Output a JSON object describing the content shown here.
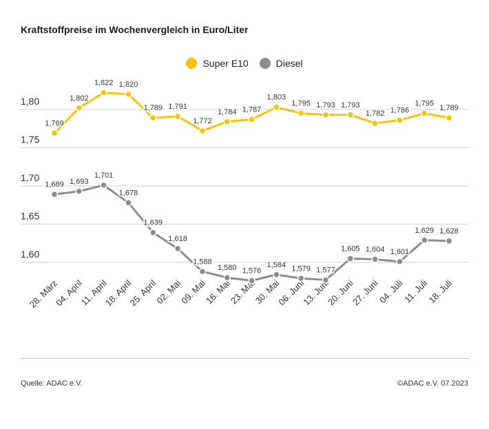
{
  "title": "Kraftstoffpreise im Wochenvergleich in Euro/Liter",
  "source": "Quelle: ADAC e.V.",
  "copyright": "©ADAC e.V. 07.2023",
  "colors": {
    "super": "#f2c500",
    "diesel": "#8c8c8c",
    "grid": "#cfcfcf"
  },
  "chart_data": {
    "type": "line",
    "title": "Kraftstoffpreise im Wochenvergleich in Euro/Liter",
    "xlabel": "",
    "ylabel": "",
    "ylim": [
      1.55,
      1.85
    ],
    "yticks": [
      "1,60",
      "1,65",
      "1,70",
      "1,75",
      "1,80"
    ],
    "ytick_values": [
      1.6,
      1.65,
      1.7,
      1.75,
      1.8
    ],
    "grid": true,
    "legend_position": "top-center",
    "categories": [
      "28. März",
      "04. April",
      "11. April",
      "18. April",
      "25. April",
      "02. Mai",
      "09. Mai",
      "16. Mai",
      "23. Mai",
      "30. Mai",
      "06. Juni",
      "13. Juni",
      "20. Juni",
      "27. Juni",
      "04. Juli",
      "11. Juli",
      "18. Juli"
    ],
    "series": [
      {
        "name": "Super E10",
        "color": "#f2c500",
        "values": [
          1.769,
          1.802,
          1.822,
          1.82,
          1.789,
          1.791,
          1.772,
          1.784,
          1.787,
          1.803,
          1.795,
          1.793,
          1.793,
          1.782,
          1.786,
          1.795,
          1.789
        ],
        "labels": [
          "1,769",
          "1,802",
          "1,822",
          "1,820",
          "1,789",
          "1,791",
          "1,772",
          "1,784",
          "1,787",
          "1,803",
          "1,795",
          "1,793",
          "1,793",
          "1,782",
          "1,786",
          "1,795",
          "1,789"
        ]
      },
      {
        "name": "Diesel",
        "color": "#8c8c8c",
        "values": [
          1.689,
          1.693,
          1.701,
          1.678,
          1.639,
          1.618,
          1.588,
          1.58,
          1.576,
          1.584,
          1.579,
          1.577,
          1.605,
          1.604,
          1.601,
          1.629,
          1.628
        ],
        "labels": [
          "1,689",
          "1,693",
          "1,701",
          "1,678",
          "1,639",
          "1,618",
          "1,588",
          "1,580",
          "1,576",
          "1,584",
          "1,579",
          "1,577",
          "1,605",
          "1,604",
          "1,601",
          "1,629",
          "1,628"
        ]
      }
    ]
  }
}
